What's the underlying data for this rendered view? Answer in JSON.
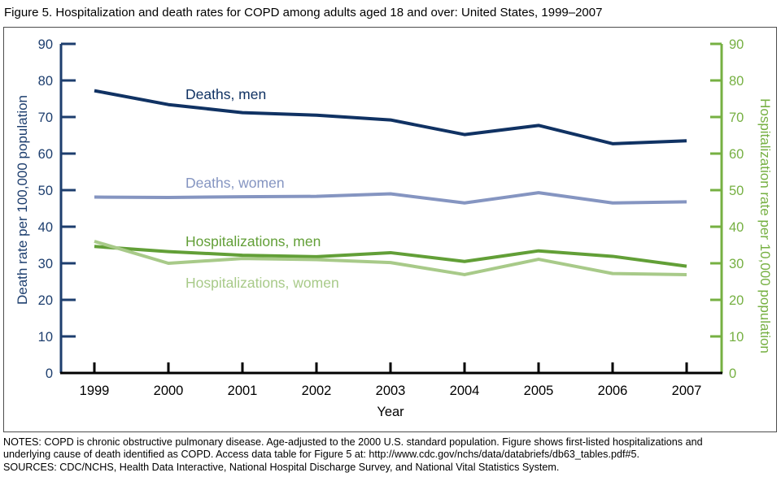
{
  "page": {
    "title": "Figure 5. Hospitalization and death rates for COPD among adults aged 18 and over: United States, 1999–2007",
    "notes_line1": "NOTES: COPD is chronic obstructive pulmonary disease. Age-adjusted to the 2000 U.S. standard population. Figure shows first-listed hospitalizations and",
    "notes_line2": "underlying cause of death identified as COPD. Access data table for Figure 5 at: http://www.cdc.gov/nchs/data/databriefs/db63_tables.pdf#5.",
    "notes_line3": "SOURCES: CDC/NCHS, Health Data Interactive, National Hospital Discharge Survey, and National Vital Statistics System."
  },
  "chart_data": {
    "type": "line",
    "title": "Figure 5. Hospitalization and death rates for COPD among adults aged 18 and over: United States, 1999–2007",
    "x": [
      1999,
      2000,
      2001,
      2002,
      2003,
      2004,
      2005,
      2006,
      2007
    ],
    "xlabel": "Year",
    "ylabel_left": "Death rate per 100,000 population",
    "ylabel_right": "Hospitalization rate per 10,000 population",
    "ylim_left": [
      0,
      90
    ],
    "ylim_right": [
      0,
      90
    ],
    "yticks": [
      0,
      10,
      20,
      30,
      40,
      50,
      60,
      70,
      80,
      90
    ],
    "grid": false,
    "legend_position": "inline-labels-on-plot",
    "series": [
      {
        "name": "Deaths, men",
        "axis": "left",
        "color": "#103263",
        "values": [
          77.2,
          73.4,
          71.2,
          70.5,
          69.2,
          65.2,
          67.7,
          62.7,
          63.5
        ]
      },
      {
        "name": "Deaths, women",
        "axis": "left",
        "color": "#8595c1",
        "values": [
          48.1,
          48.0,
          48.2,
          48.3,
          49.0,
          46.5,
          49.3,
          46.5,
          46.8
        ]
      },
      {
        "name": "Hospitalizations, men",
        "axis": "right",
        "color": "#629f37",
        "values": [
          34.6,
          33.2,
          32.2,
          31.8,
          32.9,
          30.5,
          33.4,
          31.9,
          29.2
        ]
      },
      {
        "name": "Hospitalizations, women",
        "axis": "right",
        "color": "#a8ca89",
        "values": [
          36.0,
          30.0,
          31.3,
          31.0,
          30.2,
          26.9,
          31.1,
          27.2,
          26.9
        ]
      }
    ],
    "axis_colors": {
      "left_axis": "#1d3e6e",
      "right_axis": "#76b042",
      "x_axis": "#000000",
      "tick_label_left": "#1d3e6e",
      "tick_label_right": "#76b042",
      "tick_label_x": "#000000"
    }
  }
}
